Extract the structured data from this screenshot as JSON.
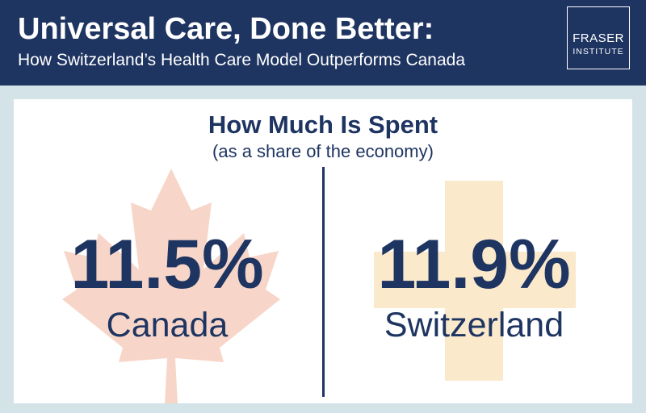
{
  "header": {
    "title": "Universal Care, Done Better:",
    "subtitle": "How Switzerland’s Health Care Model Outperforms Canada",
    "logo": {
      "line1": "FRASER",
      "line2": "INSTITUTE"
    }
  },
  "section": {
    "title": "How Much Is Spent",
    "subtitle": "(as a share of the economy)"
  },
  "comparison": [
    {
      "country": "Canada",
      "value": "11.5%",
      "symbol": "maple-leaf-icon"
    },
    {
      "country": "Switzerland",
      "value": "11.9%",
      "symbol": "swiss-cross-icon"
    }
  ],
  "colors": {
    "navy": "#1e3461",
    "background": "#d3e3e7",
    "leaf": "#f7d6c9",
    "cross": "#fbe9cc"
  }
}
